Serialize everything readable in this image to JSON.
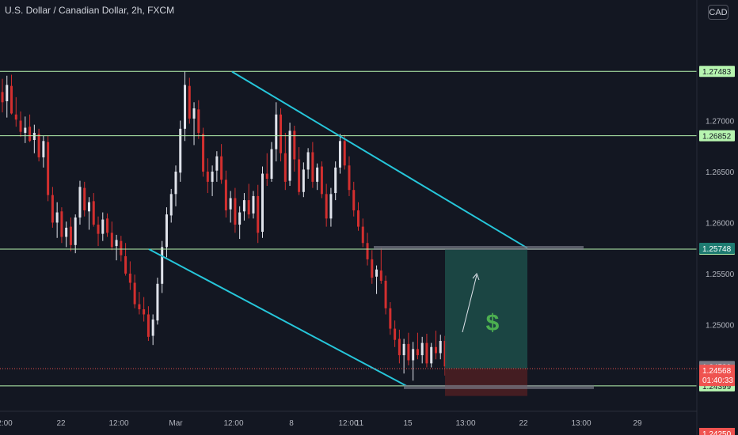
{
  "header": {
    "title": "U.S. Dollar / Canadian Dollar, 2h, FXCM",
    "currency_button": "CAD"
  },
  "colors": {
    "background": "#131722",
    "up": "#e0e3eb",
    "down": "#d32f2f",
    "hline": "#b7f5b0",
    "trendline": "#26c6da",
    "target_zone": "#1d4a47",
    "stop_zone": "#4a1e22",
    "price_line": "#ef5350",
    "axis_text": "#b2b5be"
  },
  "chart_data": {
    "type": "candlestick",
    "symbol": "U.S. Dollar / Canadian Dollar",
    "interval": "2h",
    "source": "FXCM",
    "currency": "CAD",
    "y_axis": {
      "range": [
        1.2415,
        1.2795
      ],
      "ticks": [
        "1.27000",
        "1.26500",
        "1.26000",
        "1.25500",
        "1.25000"
      ]
    },
    "x_axis": {
      "ticks": [
        "2:00",
        "22",
        "12:00",
        "Mar",
        "12:00",
        "8",
        "12:00",
        "11",
        "15",
        "13:00",
        "22",
        "13:00",
        "29"
      ]
    },
    "horizontal_levels": [
      {
        "label": "1.27483",
        "value": 1.27483
      },
      {
        "label": "1.26852",
        "value": 1.26852
      },
      {
        "label": "1.25740",
        "value": 1.2574
      },
      {
        "label": "1.24399",
        "value": 1.24399
      }
    ],
    "price_labels": {
      "level_1": "1.25748",
      "level_2": "1.24589",
      "current_price": "1.24568",
      "countdown": "01:40:33",
      "partial": "1.24250"
    },
    "trendlines": [
      {
        "name": "upper",
        "from": [
          1.2748,
          0.0
        ],
        "to": [
          1.2575,
          1.0
        ]
      },
      {
        "name": "lower",
        "from": [
          1.2574,
          0.0
        ],
        "to": [
          1.244,
          1.0
        ]
      }
    ],
    "position": {
      "entry": 1.2457,
      "target": 1.2574,
      "stop": 1.243,
      "symbol": "$"
    },
    "candles": [
      [
        1.2728,
        1.2741,
        1.2708,
        1.2718
      ],
      [
        1.2719,
        1.2744,
        1.2703,
        1.2735
      ],
      [
        1.2734,
        1.2745,
        1.2706,
        1.2707
      ],
      [
        1.2706,
        1.2723,
        1.2694,
        1.2701
      ],
      [
        1.27,
        1.2709,
        1.2684,
        1.2689
      ],
      [
        1.2688,
        1.2704,
        1.2678,
        1.2693
      ],
      [
        1.2694,
        1.2706,
        1.2679,
        1.268
      ],
      [
        1.2681,
        1.2696,
        1.2668,
        1.2688
      ],
      [
        1.2687,
        1.2692,
        1.266,
        1.2664
      ],
      [
        1.2664,
        1.2685,
        1.2654,
        1.268
      ],
      [
        1.2679,
        1.2685,
        1.2621,
        1.2627
      ],
      [
        1.2627,
        1.2635,
        1.2595,
        1.26
      ],
      [
        1.26,
        1.262,
        1.2585,
        1.261
      ],
      [
        1.2611,
        1.2615,
        1.258,
        1.2586
      ],
      [
        1.2586,
        1.2601,
        1.2576,
        1.2595
      ],
      [
        1.2596,
        1.2605,
        1.2572,
        1.2578
      ],
      [
        1.2578,
        1.2608,
        1.257,
        1.2605
      ],
      [
        1.2605,
        1.2641,
        1.2598,
        1.2635
      ],
      [
        1.2634,
        1.264,
        1.2606,
        1.2612
      ],
      [
        1.2611,
        1.2625,
        1.2593,
        1.262
      ],
      [
        1.2621,
        1.2629,
        1.2596,
        1.2598
      ],
      [
        1.2598,
        1.2606,
        1.2577,
        1.2589
      ],
      [
        1.2589,
        1.261,
        1.2582,
        1.2603
      ],
      [
        1.2604,
        1.2609,
        1.2586,
        1.259
      ],
      [
        1.259,
        1.2601,
        1.2573,
        1.2576
      ],
      [
        1.2577,
        1.2588,
        1.2563,
        1.2583
      ],
      [
        1.2582,
        1.2587,
        1.2562,
        1.2568
      ],
      [
        1.2567,
        1.258,
        1.2548,
        1.255
      ],
      [
        1.255,
        1.2562,
        1.2534,
        1.2541
      ],
      [
        1.2541,
        1.2549,
        1.2516,
        1.252
      ],
      [
        1.252,
        1.2532,
        1.251,
        1.2515
      ],
      [
        1.2515,
        1.2527,
        1.2503,
        1.251
      ],
      [
        1.251,
        1.2518,
        1.2484,
        1.2488
      ],
      [
        1.2489,
        1.251,
        1.248,
        1.2505
      ],
      [
        1.2504,
        1.2546,
        1.25,
        1.254
      ],
      [
        1.254,
        1.2582,
        1.2531,
        1.2576
      ],
      [
        1.2576,
        1.2615,
        1.2566,
        1.2608
      ],
      [
        1.2607,
        1.2633,
        1.26,
        1.2628
      ],
      [
        1.2628,
        1.2656,
        1.2616,
        1.265
      ],
      [
        1.2649,
        1.27,
        1.264,
        1.2692
      ],
      [
        1.2692,
        1.2748,
        1.268,
        1.2735
      ],
      [
        1.2734,
        1.2742,
        1.2697,
        1.2702
      ],
      [
        1.2702,
        1.2718,
        1.2676,
        1.2712
      ],
      [
        1.2711,
        1.272,
        1.2682,
        1.2688
      ],
      [
        1.2687,
        1.2693,
        1.2645,
        1.265
      ],
      [
        1.265,
        1.2663,
        1.2629,
        1.264
      ],
      [
        1.264,
        1.2656,
        1.2626,
        1.265
      ],
      [
        1.2651,
        1.267,
        1.264,
        1.2665
      ],
      [
        1.2665,
        1.2677,
        1.2638,
        1.2642
      ],
      [
        1.2642,
        1.2651,
        1.2605,
        1.2612
      ],
      [
        1.2613,
        1.2631,
        1.26,
        1.2624
      ],
      [
        1.2624,
        1.2634,
        1.259,
        1.2598
      ],
      [
        1.2598,
        1.2616,
        1.2584,
        1.261
      ],
      [
        1.2611,
        1.2629,
        1.2602,
        1.2622
      ],
      [
        1.2622,
        1.2638,
        1.2604,
        1.2608
      ],
      [
        1.2609,
        1.2631,
        1.2604,
        1.2626
      ],
      [
        1.2626,
        1.2637,
        1.258,
        1.259
      ],
      [
        1.2591,
        1.2655,
        1.2585,
        1.2648
      ],
      [
        1.2648,
        1.2668,
        1.2636,
        1.2643
      ],
      [
        1.2643,
        1.2679,
        1.264,
        1.2672
      ],
      [
        1.2672,
        1.2718,
        1.266,
        1.2706
      ],
      [
        1.2706,
        1.2712,
        1.266,
        1.2668
      ],
      [
        1.2668,
        1.2688,
        1.2632,
        1.264
      ],
      [
        1.2641,
        1.2698,
        1.2636,
        1.269
      ],
      [
        1.269,
        1.2695,
        1.265,
        1.2662
      ],
      [
        1.2662,
        1.2674,
        1.2627,
        1.263
      ],
      [
        1.263,
        1.2659,
        1.2625,
        1.2652
      ],
      [
        1.2652,
        1.2673,
        1.2643,
        1.2669
      ],
      [
        1.2669,
        1.2679,
        1.2634,
        1.264
      ],
      [
        1.264,
        1.2658,
        1.2632,
        1.2654
      ],
      [
        1.2655,
        1.266,
        1.2624,
        1.2628
      ],
      [
        1.2628,
        1.2638,
        1.2596,
        1.2604
      ],
      [
        1.2604,
        1.2634,
        1.2596,
        1.2628
      ],
      [
        1.2629,
        1.266,
        1.2622,
        1.2654
      ],
      [
        1.2654,
        1.2687,
        1.2648,
        1.268
      ],
      [
        1.268,
        1.2686,
        1.2652,
        1.2656
      ],
      [
        1.2656,
        1.2665,
        1.2626,
        1.2632
      ],
      [
        1.2632,
        1.264,
        1.2606,
        1.2612
      ],
      [
        1.2612,
        1.262,
        1.2592,
        1.2596
      ],
      [
        1.2596,
        1.2604,
        1.2576,
        1.258
      ],
      [
        1.258,
        1.259,
        1.2558,
        1.2564
      ],
      [
        1.2564,
        1.2573,
        1.254,
        1.2546
      ],
      [
        1.2547,
        1.2558,
        1.253,
        1.2554
      ],
      [
        1.2553,
        1.2575,
        1.254,
        1.2543
      ],
      [
        1.2543,
        1.2548,
        1.251,
        1.2516
      ],
      [
        1.2516,
        1.2522,
        1.249,
        1.2496
      ],
      [
        1.2496,
        1.2504,
        1.2478,
        1.2485
      ],
      [
        1.2486,
        1.2495,
        1.2462,
        1.247
      ],
      [
        1.247,
        1.2486,
        1.2452,
        1.2481
      ],
      [
        1.2481,
        1.2492,
        1.246,
        1.2465
      ],
      [
        1.2465,
        1.2483,
        1.2445,
        1.2476
      ],
      [
        1.2476,
        1.2492,
        1.2466,
        1.247
      ],
      [
        1.247,
        1.2488,
        1.2462,
        1.2482
      ],
      [
        1.2482,
        1.2491,
        1.2458,
        1.2462
      ],
      [
        1.2462,
        1.2482,
        1.2458,
        1.2478
      ],
      [
        1.2478,
        1.2494,
        1.2466,
        1.2472
      ],
      [
        1.2472,
        1.249,
        1.2466,
        1.2484
      ],
      [
        1.2484,
        1.2489,
        1.245,
        1.2459
      ]
    ]
  }
}
